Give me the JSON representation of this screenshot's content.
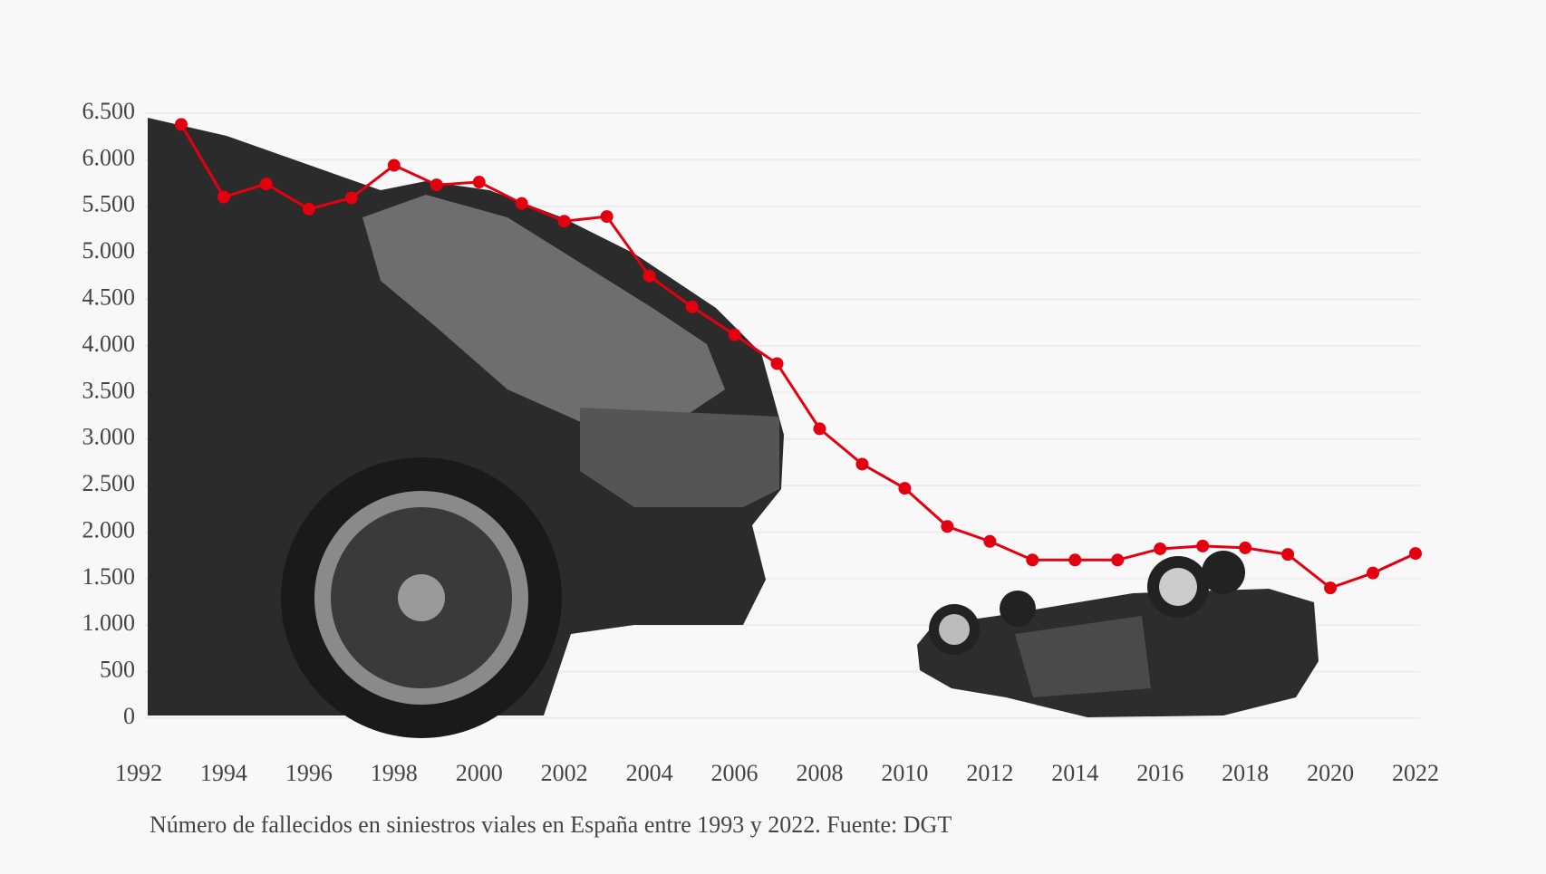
{
  "chart_data": {
    "type": "line",
    "caption": "Número de fallecidos en siniestros viales en España entre 1993 y 2022. Fuente: DGT",
    "x": [
      1993,
      1994,
      1995,
      1996,
      1997,
      1998,
      1999,
      2000,
      2001,
      2002,
      2003,
      2004,
      2005,
      2006,
      2007,
      2008,
      2009,
      2010,
      2011,
      2012,
      2013,
      2014,
      2015,
      2016,
      2017,
      2018,
      2019,
      2020,
      2021,
      2022
    ],
    "series": [
      {
        "color": "#e3000f",
        "values": [
          6380,
          5600,
          5740,
          5470,
          5590,
          5940,
          5730,
          5760,
          5530,
          5340,
          5390,
          4750,
          4420,
          4120,
          3810,
          3110,
          2730,
          2470,
          2060,
          1900,
          1700,
          1700,
          1700,
          1820,
          1850,
          1830,
          1760,
          1400,
          1560,
          1770
        ]
      }
    ],
    "xlim": [
      1992,
      2022
    ],
    "xticks": [
      1992,
      1994,
      1996,
      1998,
      2000,
      2002,
      2004,
      2006,
      2008,
      2010,
      2012,
      2014,
      2016,
      2018,
      2020,
      2022
    ],
    "ylim": [
      0,
      6500
    ],
    "yticks": [
      0,
      500,
      {
        "value": 1000,
        "label": "1.000"
      },
      {
        "value": 1500,
        "label": "1.500"
      },
      {
        "value": 2000,
        "label": "2.000"
      },
      {
        "value": 2500,
        "label": "2.500"
      },
      {
        "value": 3000,
        "label": "3.000"
      },
      {
        "value": 3500,
        "label": "3.500"
      },
      {
        "value": 4000,
        "label": "4.000"
      },
      {
        "value": 4500,
        "label": "4.500"
      },
      {
        "value": 5000,
        "label": "5.000"
      },
      {
        "value": 5500,
        "label": "5.500"
      },
      {
        "value": 6000,
        "label": "6.000"
      },
      {
        "value": 6500,
        "label": "6.500"
      }
    ],
    "grid": true
  }
}
